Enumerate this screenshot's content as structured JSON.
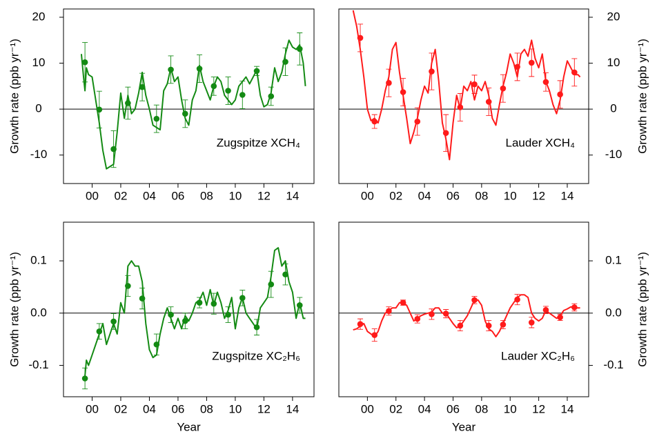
{
  "chart_data": [
    {
      "type": "line",
      "title": "Zugspitze XCH₄",
      "ylabel": "Growth rate (ppb yr⁻¹)",
      "yaxis_side": "left",
      "label_corner": "bottom-right",
      "zero_line": true,
      "xlim": [
        1998,
        2015.5
      ],
      "xticks": [
        {
          "value": 2000,
          "label": "00"
        },
        {
          "value": 2002,
          "label": "02"
        },
        {
          "value": 2004,
          "label": "04"
        },
        {
          "value": 2006,
          "label": "06"
        },
        {
          "value": 2008,
          "label": "08"
        },
        {
          "value": 2010,
          "label": "10"
        },
        {
          "value": 2012,
          "label": "12"
        },
        {
          "value": 2014,
          "label": "14"
        }
      ],
      "ylim": [
        -16.2,
        21.8
      ],
      "yticks": [
        -10,
        0,
        10,
        20
      ],
      "series": [
        {
          "color": "#138a13",
          "x": [
            1999.25,
            1999.4,
            1999.5,
            1999.6,
            1999.75,
            2000,
            2000.25,
            2000.5,
            2000.75,
            2001,
            2001.25,
            2001.5,
            2001.75,
            2002,
            2002.25,
            2002.5,
            2002.75,
            2003,
            2003.25,
            2003.5,
            2003.75,
            2004,
            2004.25,
            2004.5,
            2004.75,
            2005,
            2005.25,
            2005.5,
            2005.75,
            2006,
            2006.25,
            2006.5,
            2006.75,
            2007,
            2007.25,
            2007.5,
            2007.75,
            2008,
            2008.25,
            2008.5,
            2008.75,
            2009,
            2009.25,
            2009.5,
            2009.75,
            2010,
            2010.25,
            2010.5,
            2010.75,
            2011,
            2011.25,
            2011.5,
            2011.75,
            2012,
            2012.25,
            2012.5,
            2012.75,
            2013,
            2013.25,
            2013.5,
            2013.75,
            2014,
            2014.25,
            2014.5,
            2014.75,
            2014.9
          ],
          "values": [
            12,
            7,
            4,
            9,
            7.5,
            7,
            2,
            -3,
            -9,
            -13,
            -12.5,
            -12,
            -5,
            3.5,
            -2,
            3,
            -1,
            0,
            3.5,
            8,
            3,
            0,
            -3.5,
            -4,
            -4.5,
            4,
            5.5,
            9,
            6,
            7,
            2,
            -2,
            -3.5,
            2,
            4,
            9.5,
            6,
            4,
            2,
            5,
            7,
            6,
            3,
            2,
            1,
            2,
            5,
            6,
            7,
            5.5,
            7,
            8.5,
            3,
            0.5,
            1,
            3.5,
            9,
            6,
            8,
            12,
            15,
            13.5,
            13,
            14,
            10,
            5
          ]
        },
        {
          "color": "#138a13",
          "x": [
            1999.5,
            2000.5,
            2001.5,
            2002.5,
            2003.5,
            2004.5,
            2005.5,
            2006.5,
            2007.5,
            2008.5,
            2009.5,
            2010.5,
            2011.5,
            2012.5,
            2013.5,
            2014.5
          ],
          "values": [
            10.2,
            -0.1,
            -8.7,
            1.3,
            4.8,
            -2.1,
            8.6,
            -1,
            8.8,
            5,
            4,
            3.1,
            8.3,
            2.8,
            10.3,
            13.1
          ],
          "errors": [
            4.3,
            4,
            4,
            3.5,
            3,
            3,
            3,
            3,
            3,
            2,
            3,
            3,
            1,
            2,
            3,
            3.5
          ]
        }
      ]
    },
    {
      "type": "line",
      "title": "Lauder XCH₄",
      "ylabel": "Growth rate (ppb yr⁻¹)",
      "yaxis_side": "right",
      "label_corner": "bottom-right",
      "zero_line": true,
      "xlim": [
        1998,
        2015.5
      ],
      "xticks": [
        {
          "value": 2000,
          "label": "00"
        },
        {
          "value": 2002,
          "label": "02"
        },
        {
          "value": 2004,
          "label": "04"
        },
        {
          "value": 2006,
          "label": "06"
        },
        {
          "value": 2008,
          "label": "08"
        },
        {
          "value": 2010,
          "label": "10"
        },
        {
          "value": 2012,
          "label": "12"
        },
        {
          "value": 2014,
          "label": "14"
        }
      ],
      "ylim": [
        -16.2,
        21.8
      ],
      "yticks": [
        -10,
        0,
        10,
        20
      ],
      "series": [
        {
          "color": "#ff1a1a",
          "x": [
            1999,
            1999.25,
            1999.5,
            1999.75,
            2000,
            2000.25,
            2000.5,
            2000.75,
            2001,
            2001.25,
            2001.5,
            2001.75,
            2002,
            2002.25,
            2002.5,
            2002.75,
            2003,
            2003.25,
            2003.5,
            2003.75,
            2004,
            2004.25,
            2004.5,
            2004.75,
            2005,
            2005.25,
            2005.5,
            2005.75,
            2006,
            2006.25,
            2006.5,
            2006.75,
            2007,
            2007.25,
            2007.5,
            2007.75,
            2008,
            2008.25,
            2008.5,
            2008.75,
            2009,
            2009.25,
            2009.5,
            2009.75,
            2010,
            2010.25,
            2010.5,
            2010.75,
            2011,
            2011.25,
            2011.5,
            2011.75,
            2012,
            2012.25,
            2012.5,
            2012.75,
            2013,
            2013.25,
            2013.5,
            2013.75,
            2014,
            2014.25,
            2014.5,
            2014.75,
            2014.9
          ],
          "values": [
            21.5,
            18,
            13,
            7,
            0,
            -2.5,
            -2,
            -3,
            0,
            4,
            7,
            13,
            14.5,
            8,
            3,
            -2,
            -7.5,
            -5,
            -2,
            2,
            5,
            3.5,
            10,
            13,
            6,
            -3,
            -6.5,
            -11,
            -3,
            3,
            0,
            5,
            4,
            6,
            2,
            5,
            4,
            6,
            3,
            -2,
            -3.5,
            1,
            5,
            8,
            12,
            10,
            7,
            12,
            13,
            11.5,
            15,
            11,
            9,
            12,
            6,
            4,
            1,
            -1,
            2,
            7,
            10.5,
            9,
            7.5,
            7.5,
            7
          ]
        },
        {
          "color": "#ff1a1a",
          "x": [
            1999.5,
            2000.5,
            2001.5,
            2002.5,
            2003.5,
            2004.5,
            2005.5,
            2006.5,
            2007.5,
            2008.5,
            2009.5,
            2010.5,
            2011.5,
            2012.5,
            2013.5,
            2014.5
          ],
          "values": [
            15.5,
            -2.7,
            5.7,
            3.7,
            -2.7,
            8.2,
            -5.2,
            0.4,
            5.4,
            1.6,
            4.5,
            9.2,
            10.1,
            5.9,
            3.2,
            8
          ],
          "errors": [
            3,
            1.5,
            3,
            3,
            3,
            4,
            4,
            3,
            2,
            3,
            3,
            3,
            3,
            2,
            3,
            3
          ]
        }
      ]
    },
    {
      "type": "line",
      "title": "Zugspitze XC₂H₆",
      "xlabel": "Year",
      "ylabel": "Growth rate (ppb yr⁻¹)",
      "yaxis_side": "left",
      "label_corner": "bottom-right",
      "zero_line": true,
      "xlim": [
        1998,
        2015.5
      ],
      "xticks": [
        {
          "value": 2000,
          "label": "00"
        },
        {
          "value": 2002,
          "label": "02"
        },
        {
          "value": 2004,
          "label": "04"
        },
        {
          "value": 2006,
          "label": "06"
        },
        {
          "value": 2008,
          "label": "08"
        },
        {
          "value": 2010,
          "label": "10"
        },
        {
          "value": 2012,
          "label": "12"
        },
        {
          "value": 2014,
          "label": "14"
        }
      ],
      "ylim": [
        -0.16,
        0.174
      ],
      "yticks": [
        -0.1,
        {
          "value": 0,
          "label": "0.0"
        },
        0.1
      ],
      "series": [
        {
          "color": "#138a13",
          "x": [
            1999.5,
            1999.6,
            1999.75,
            2000,
            2000.25,
            2000.5,
            2000.75,
            2001,
            2001.25,
            2001.5,
            2001.75,
            2002,
            2002.25,
            2002.5,
            2002.75,
            2003,
            2003.25,
            2003.5,
            2003.75,
            2004,
            2004.25,
            2004.5,
            2004.75,
            2005,
            2005.25,
            2005.5,
            2005.75,
            2006,
            2006.25,
            2006.5,
            2006.75,
            2007,
            2007.25,
            2007.5,
            2007.75,
            2008,
            2008.25,
            2008.5,
            2008.75,
            2009,
            2009.25,
            2009.5,
            2009.75,
            2010,
            2010.25,
            2010.5,
            2010.75,
            2011,
            2011.25,
            2011.5,
            2011.75,
            2012,
            2012.25,
            2012.5,
            2012.75,
            2013,
            2013.25,
            2013.5,
            2013.75,
            2014,
            2014.25,
            2014.5,
            2014.75,
            2014.9
          ],
          "values": [
            -0.12,
            -0.09,
            -0.1,
            -0.08,
            -0.06,
            -0.04,
            -0.02,
            -0.06,
            -0.04,
            -0.02,
            -0.04,
            0.02,
            0,
            0.09,
            0.1,
            0.09,
            0.09,
            0.06,
            -0.02,
            -0.07,
            -0.085,
            -0.08,
            -0.04,
            -0.01,
            0.01,
            -0.01,
            -0.03,
            -0.01,
            -0.03,
            -0.005,
            -0.015,
            0,
            0.02,
            0.025,
            0.04,
            0.015,
            0.045,
            0.015,
            0.04,
            0.02,
            -0.01,
            0.005,
            0.03,
            -0.03,
            0.01,
            0.03,
            0,
            -0.01,
            -0.02,
            -0.03,
            0.01,
            0.02,
            0.03,
            0.07,
            0.12,
            0.125,
            0.09,
            0.1,
            0.06,
            0.04,
            -0.01,
            0.02,
            -0.01,
            -0.01
          ]
        },
        {
          "color": "#138a13",
          "x": [
            1999.5,
            2000.5,
            2001.5,
            2002.5,
            2003.5,
            2004.5,
            2005.5,
            2006.5,
            2007.5,
            2008.5,
            2009.5,
            2010.5,
            2011.5,
            2012.5,
            2013.5,
            2014.5
          ],
          "values": [
            -0.125,
            -0.035,
            -0.016,
            0.052,
            0.028,
            -0.06,
            -0.003,
            -0.015,
            0.02,
            0.018,
            -0.003,
            0.029,
            -0.027,
            0.055,
            0.074,
            0.015
          ],
          "errors": [
            0.02,
            0.015,
            0.015,
            0.02,
            0.02,
            0.02,
            0.015,
            0.015,
            0.01,
            0.02,
            0.015,
            0.015,
            0.015,
            0.025,
            0.02,
            0.015
          ]
        }
      ]
    },
    {
      "type": "line",
      "title": "Lauder XC₂H₆",
      "xlabel": "Year",
      "ylabel": "Growth rate (ppb yr⁻¹)",
      "yaxis_side": "right",
      "label_corner": "bottom-right",
      "zero_line": true,
      "xlim": [
        1998,
        2015.5
      ],
      "xticks": [
        {
          "value": 2000,
          "label": "00"
        },
        {
          "value": 2002,
          "label": "02"
        },
        {
          "value": 2004,
          "label": "04"
        },
        {
          "value": 2006,
          "label": "06"
        },
        {
          "value": 2008,
          "label": "08"
        },
        {
          "value": 2010,
          "label": "10"
        },
        {
          "value": 2012,
          "label": "12"
        },
        {
          "value": 2014,
          "label": "14"
        }
      ],
      "ylim": [
        -0.16,
        0.174
      ],
      "yticks": [
        -0.1,
        {
          "value": 0,
          "label": "0.0"
        },
        0.1
      ],
      "series": [
        {
          "color": "#ff1a1a",
          "x": [
            1999,
            1999.25,
            1999.5,
            1999.75,
            2000,
            2000.25,
            2000.5,
            2000.75,
            2001,
            2001.25,
            2001.5,
            2001.75,
            2002,
            2002.25,
            2002.5,
            2002.75,
            2003,
            2003.25,
            2003.5,
            2003.75,
            2004,
            2004.25,
            2004.5,
            2004.75,
            2005,
            2005.25,
            2005.5,
            2005.75,
            2006,
            2006.25,
            2006.5,
            2006.75,
            2007,
            2007.25,
            2007.5,
            2007.75,
            2008,
            2008.25,
            2008.5,
            2008.75,
            2009,
            2009.25,
            2009.5,
            2009.75,
            2010,
            2010.25,
            2010.5,
            2010.75,
            2011,
            2011.25,
            2011.5,
            2011.75,
            2012,
            2012.25,
            2012.5,
            2012.75,
            2013,
            2013.25,
            2013.5,
            2013.75,
            2014,
            2014.25,
            2014.5,
            2014.75,
            2014.9
          ],
          "values": [
            -0.032,
            -0.03,
            -0.025,
            -0.02,
            -0.035,
            -0.04,
            -0.045,
            -0.035,
            -0.015,
            0,
            0.005,
            0.01,
            0.01,
            0.02,
            0.02,
            0.015,
            0,
            -0.015,
            -0.01,
            -0.005,
            -0.002,
            0,
            0.002,
            0.01,
            0.01,
            0,
            0,
            -0.01,
            -0.02,
            -0.028,
            -0.025,
            -0.015,
            -0.005,
            0.01,
            0.025,
            0.025,
            0.015,
            -0.015,
            -0.03,
            -0.035,
            -0.045,
            -0.035,
            -0.02,
            -0.005,
            0.01,
            0.02,
            0.03,
            0.035,
            0.035,
            0.03,
            0,
            -0.01,
            -0.015,
            -0.01,
            0.005,
            0,
            -0.005,
            -0.01,
            -0.005,
            0.005,
            0.008,
            0.012,
            0.01,
            0.01,
            0.01
          ]
        },
        {
          "color": "#ff1a1a",
          "x": [
            1999.5,
            2000.5,
            2001.5,
            2002.5,
            2003.5,
            2004.5,
            2005.5,
            2006.5,
            2007.5,
            2008.5,
            2009.5,
            2010.5,
            2011.5,
            2012.5,
            2013.5,
            2014.5
          ],
          "values": [
            -0.021,
            -0.042,
            0.004,
            0.02,
            -0.011,
            -0.002,
            -0.001,
            -0.024,
            0.025,
            -0.024,
            -0.022,
            0.026,
            -0.018,
            0.006,
            -0.008,
            0.011
          ],
          "errors": [
            0.01,
            0.012,
            0.008,
            0.005,
            0.008,
            0.01,
            0.008,
            0.01,
            0.007,
            0.01,
            0.008,
            0.01,
            0.01,
            0.007,
            0.006,
            0.007
          ]
        }
      ]
    }
  ]
}
